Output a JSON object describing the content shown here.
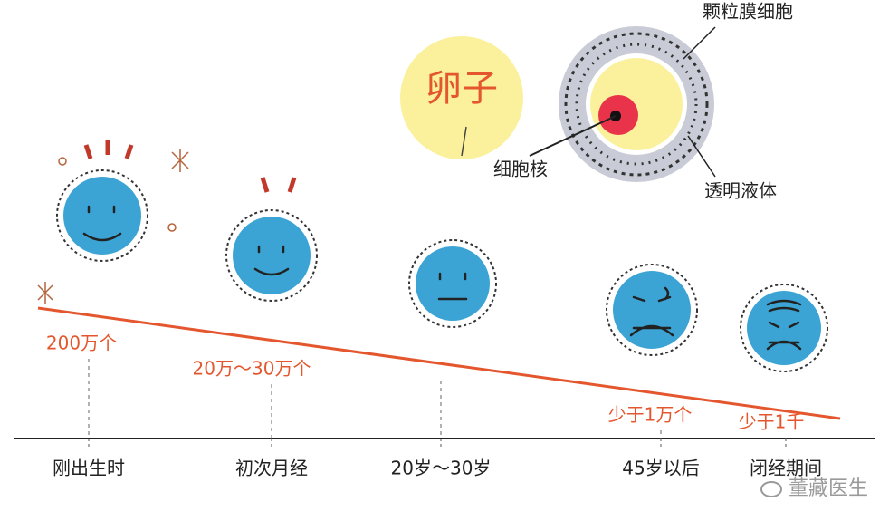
{
  "legend": {
    "egg": "卵子",
    "nucleus": "细胞核",
    "granulosa": "颗粒膜细胞",
    "fluid": "透明液体"
  },
  "stages": [
    {
      "label": "刚出生时",
      "count": "200万个"
    },
    {
      "label": "初次月经",
      "count": "20万～30万个"
    },
    {
      "label": "20岁～30岁",
      "count": null
    },
    {
      "label": "45岁以后",
      "count": "少于1万个"
    },
    {
      "label": "闭经期间",
      "count": "少于1千"
    }
  ],
  "watermark": "董藏医生"
}
